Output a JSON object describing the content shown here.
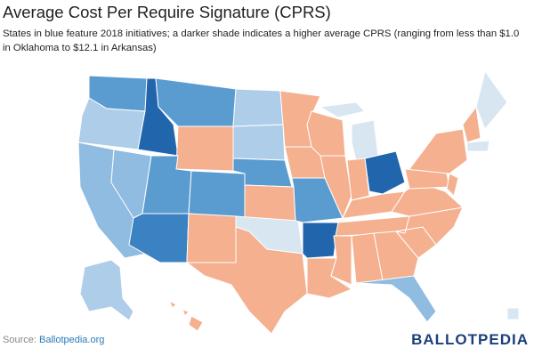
{
  "header": {
    "title": "Average Cost Per Require Signature (CPRS)",
    "subtitle": "States in blue feature 2018 initiatives; a darker shade indicates a higher average CPRS (ranging from less than $1.0 in Oklahoma to $12.1 in Arkansas)"
  },
  "footer": {
    "source_label": "Source:",
    "source_link": "Ballotpedia.org",
    "logo": "BALLOTPEDIA"
  }
}
